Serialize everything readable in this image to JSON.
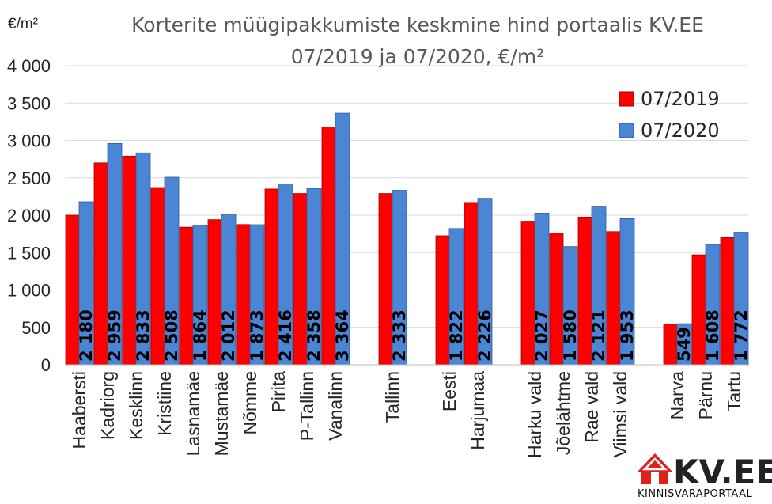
{
  "chart_data": {
    "type": "bar",
    "title_line1": "Korterite müügipakkumiste keskmine hind portaalis KV.EE",
    "title_line2": "07/2019 ja 07/2020, €/m²",
    "ylabel": "€/m²",
    "ylim": [
      0,
      4000
    ],
    "yticks": [
      0,
      500,
      1000,
      1500,
      2000,
      2500,
      3000,
      3500,
      4000
    ],
    "ytick_labels": [
      "0",
      "500",
      "1 000",
      "1 500",
      "2 000",
      "2 500",
      "3 000",
      "3 500",
      "4 000"
    ],
    "grid": true,
    "legend_position": "top-right",
    "categories": [
      "Haabersti",
      "Kadriorg",
      "Kesklinn",
      "Kristiine",
      "Lasnamäe",
      "Mustamäe",
      "Nõmme",
      "Pirita",
      "P-Tallinn",
      "Vanalinn",
      "",
      "Tallinn",
      "",
      "Eesti",
      "Harjumaa",
      "",
      "Harku vald",
      "Jõelähtme",
      "Rae vald",
      "Viimsi vald",
      "",
      "Narva",
      "Pärnu",
      "Tartu"
    ],
    "series": [
      {
        "name": "07/2019",
        "color": "#ff0000",
        "values": [
          2000,
          2700,
          2790,
          2370,
          1840,
          1940,
          1875,
          2350,
          2290,
          3180,
          null,
          2290,
          null,
          1725,
          2170,
          null,
          1920,
          1760,
          1975,
          1780,
          null,
          545,
          1470,
          1700
        ]
      },
      {
        "name": "07/2020",
        "color": "#4a86d4",
        "values": [
          2180,
          2959,
          2833,
          2508,
          1864,
          2012,
          1873,
          2416,
          2358,
          3364,
          null,
          2333,
          null,
          1822,
          2226,
          null,
          2027,
          1580,
          2121,
          1953,
          null,
          549,
          1608,
          1772
        ],
        "labels": [
          "2 180",
          "2 959",
          "2 833",
          "2 508",
          "1 864",
          "2 012",
          "1 873",
          "2 416",
          "2 358",
          "3 364",
          "",
          "2 333",
          "",
          "1 822",
          "2 226",
          "",
          "2 027",
          "1 580",
          "2 121",
          "1 953",
          "",
          "549",
          "1 608",
          "1 772"
        ]
      }
    ]
  },
  "logo": {
    "text": "KV.EE",
    "subtitle": "KINNISVARAPORTAAL",
    "accent_color": "#e0201b",
    "icon": "house-icon"
  }
}
